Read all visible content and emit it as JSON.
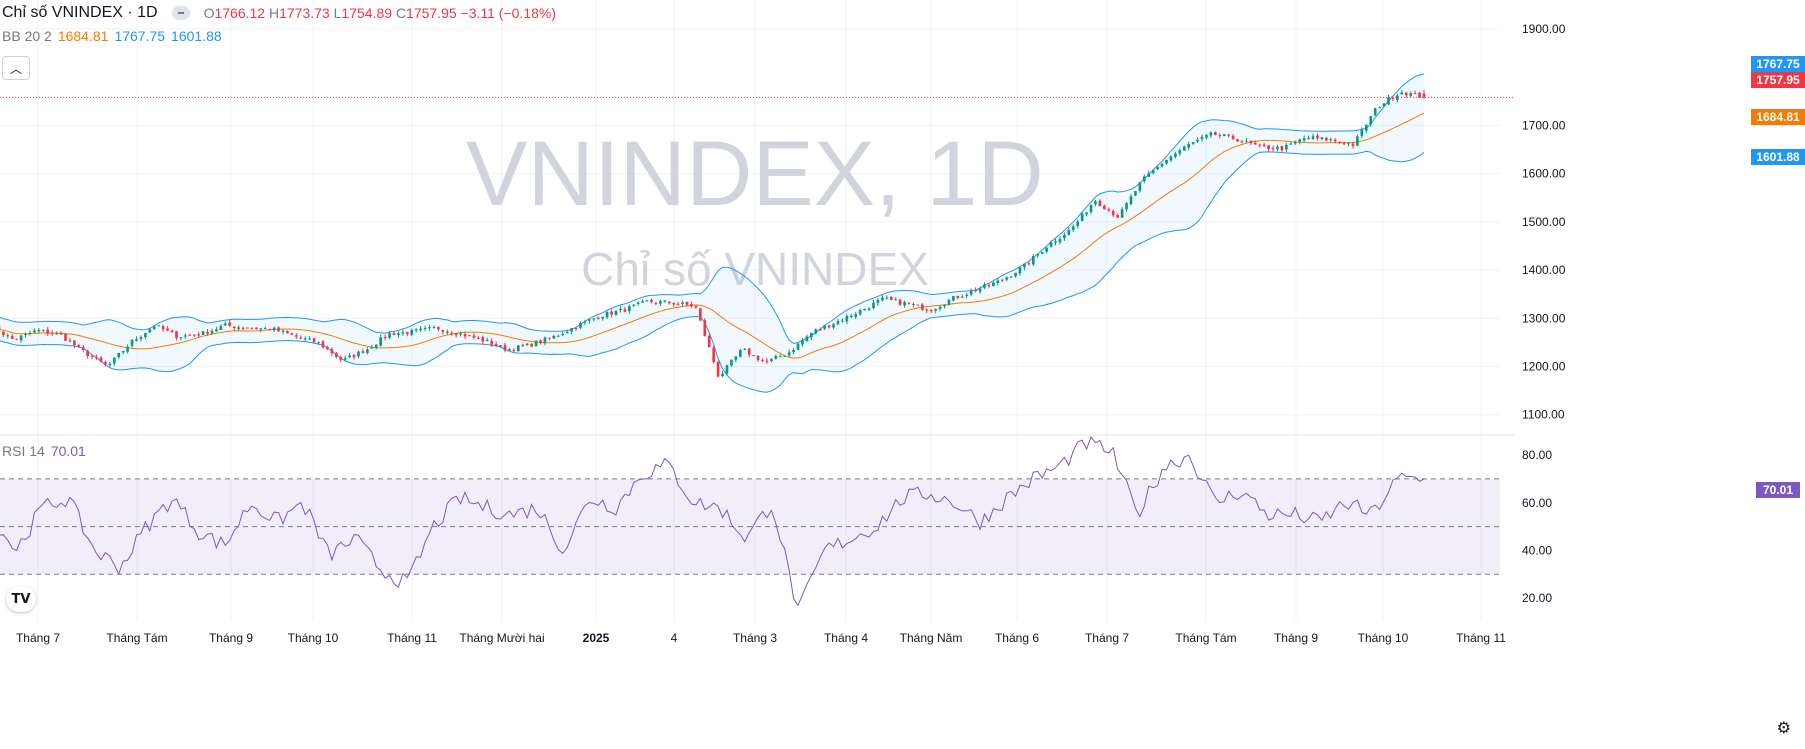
{
  "header": {
    "symbol_title": "Chỉ số VNINDEX · 1D",
    "open_label": "O",
    "open_value": "1766.12",
    "high_label": "H",
    "high_value": "1773.73",
    "low_label": "L",
    "low_value": "1754.89",
    "close_label": "C",
    "close_value": "1757.95",
    "change": "−3.11 (−0.18%)"
  },
  "bb_legend": {
    "label": "BB 20 2",
    "basis": "1684.81",
    "upper": "1767.75",
    "lower": "1601.88"
  },
  "rsi_legend": {
    "label": "RSI 14",
    "value": "70.01"
  },
  "watermark": {
    "title": "VNINDEX, 1D",
    "subtitle": "Chỉ số VNINDEX"
  },
  "price_tags": {
    "upper": "1767.75",
    "close": "1757.95",
    "basis": "1684.81",
    "lower": "1601.88",
    "rsi": "70.01"
  },
  "colors": {
    "up": "#089981",
    "down": "#f23645",
    "basis": "#f57c00",
    "band": "#2196f3",
    "rsi": "#7e57c2"
  },
  "chart_data": [
    {
      "type": "line",
      "description_key": "price",
      "y_ticks": [
        "1900.00",
        "1700.00",
        "1600.00",
        "1500.00",
        "1400.00",
        "1300.00",
        "1200.00",
        "1100.00"
      ],
      "ylim": [
        1060,
        1960
      ],
      "x_labels": [
        "Tháng 7",
        "Tháng Tám",
        "Tháng 9",
        "Tháng 10",
        "Tháng 11",
        "Tháng Mười hai",
        "2025",
        "4",
        "Tháng 3",
        "Tháng 4",
        "Tháng Năm",
        "Tháng 6",
        "Tháng 7",
        "Tháng Tám",
        "Tháng 9",
        "Tháng 10",
        "Tháng 11"
      ],
      "close_anchors": [
        1285,
        1255,
        1275,
        1265,
        1230,
        1200,
        1250,
        1285,
        1262,
        1268,
        1285,
        1280,
        1278,
        1262,
        1248,
        1212,
        1235,
        1268,
        1272,
        1280,
        1268,
        1254,
        1235,
        1245,
        1262,
        1285,
        1306,
        1318,
        1335,
        1332,
        1325,
        1178,
        1235,
        1208,
        1230,
        1272,
        1292,
        1315,
        1340,
        1330,
        1318,
        1342,
        1360,
        1378,
        1408,
        1452,
        1485,
        1545,
        1510,
        1585,
        1628,
        1660,
        1682,
        1672,
        1655,
        1652,
        1675,
        1670,
        1660,
        1738,
        1770,
        1758
      ],
      "candle_count": 324,
      "last_close": 1757.95,
      "last_open": 1766.12,
      "last_high": 1773.73,
      "last_low": 1754.89
    },
    {
      "type": "line",
      "description_key": "rsi",
      "y_ticks": [
        "80.00",
        "60.00",
        "40.00",
        "20.00"
      ],
      "ylim": [
        10,
        88
      ],
      "levels": [
        70,
        50,
        30
      ],
      "anchors": [
        55,
        40,
        58,
        62,
        40,
        33,
        50,
        62,
        48,
        42,
        60,
        52,
        60,
        38,
        45,
        32,
        26,
        50,
        62,
        58,
        55,
        58,
        40,
        62,
        58,
        72,
        76,
        60,
        58,
        45,
        60,
        14,
        40,
        45,
        50,
        62,
        64,
        60,
        52,
        62,
        70,
        75,
        85,
        82,
        55,
        75,
        80,
        60,
        65,
        55,
        55,
        52,
        60,
        55,
        70,
        70
      ],
      "last_value": 70.01
    }
  ]
}
